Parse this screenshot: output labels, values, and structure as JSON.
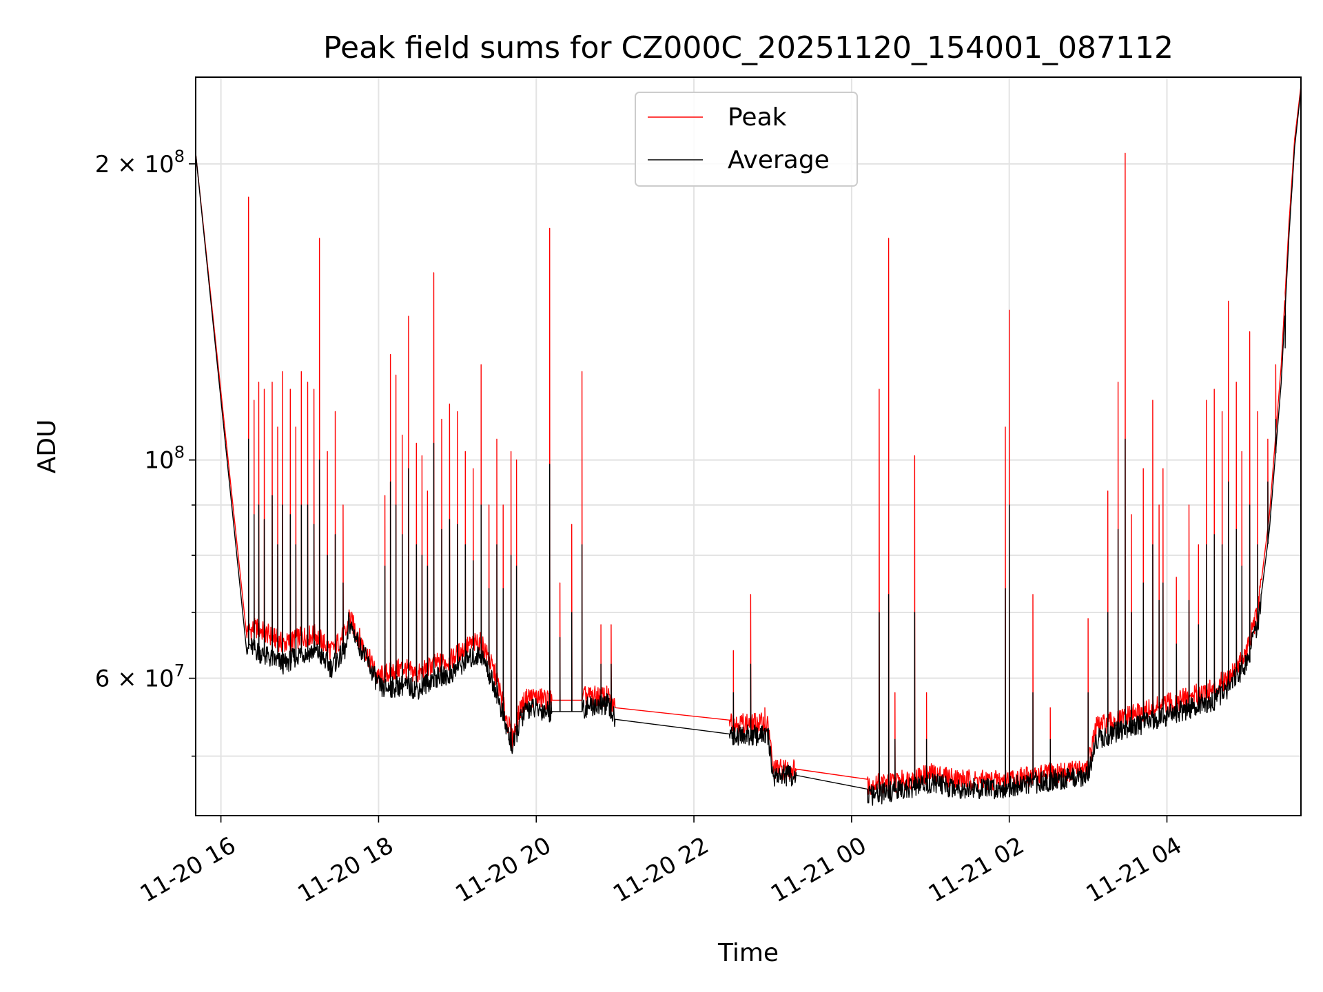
{
  "chart_data": {
    "type": "line",
    "title": "Peak field sums for CZ000C_20251120_154001_087112",
    "xlabel": "Time",
    "ylabel": "ADU",
    "yscale": "log",
    "xlim": [
      15.68,
      29.7
    ],
    "ylim": [
      43500000,
      245000000
    ],
    "grid": true,
    "legend_position": "top-center",
    "x_ticks": [
      {
        "value": 16,
        "label": "11-20 16"
      },
      {
        "value": 18,
        "label": "11-20 18"
      },
      {
        "value": 20,
        "label": "11-20 20"
      },
      {
        "value": 22,
        "label": "11-20 22"
      },
      {
        "value": 24,
        "label": "11-21 00"
      },
      {
        "value": 26,
        "label": "11-21 02"
      },
      {
        "value": 28,
        "label": "11-21 04"
      }
    ],
    "y_ticks_major": [
      {
        "value": 60000000,
        "base": "6 × 10",
        "exp": "7"
      },
      {
        "value": 100000000,
        "base": "10",
        "exp": "8"
      },
      {
        "value": 200000000,
        "base": "2 × 10",
        "exp": "8"
      }
    ],
    "y_ticks_minor": [
      50000000,
      70000000,
      80000000,
      90000000
    ],
    "series": [
      {
        "name": "Peak",
        "color": "#ff0000",
        "baseline": [
          [
            15.68,
            205000000
          ],
          [
            16.33,
            67000000
          ],
          [
            16.45,
            67500000
          ],
          [
            16.6,
            66500000
          ],
          [
            16.8,
            65000000
          ],
          [
            17.0,
            66000000
          ],
          [
            17.2,
            66500000
          ],
          [
            17.4,
            64000000
          ],
          [
            17.6,
            67000000
          ],
          [
            17.62,
            69500000
          ],
          [
            18.0,
            60000000
          ],
          [
            18.05,
            60500000
          ],
          [
            18.3,
            61500000
          ],
          [
            18.5,
            60500000
          ],
          [
            18.7,
            62000000
          ],
          [
            18.9,
            62500000
          ],
          [
            19.1,
            64500000
          ],
          [
            19.3,
            65500000
          ],
          [
            19.5,
            60000000
          ],
          [
            19.6,
            55500000
          ],
          [
            19.7,
            52000000
          ],
          [
            19.8,
            56000000
          ],
          [
            19.9,
            57500000
          ],
          [
            20.2,
            57000000
          ],
          [
            20.6,
            57500000
          ],
          [
            20.9,
            57500000
          ],
          [
            21.0,
            56000000
          ],
          [
            22.45,
            55000000
          ],
          [
            22.5,
            54000000
          ],
          [
            22.9,
            54000000
          ],
          [
            22.95,
            53500000
          ],
          [
            23.0,
            48500000
          ],
          [
            23.3,
            48500000
          ],
          [
            24.2,
            46800000
          ],
          [
            24.5,
            47000000
          ],
          [
            24.8,
            47500000
          ],
          [
            25.0,
            48000000
          ],
          [
            25.3,
            47500000
          ],
          [
            25.6,
            47200000
          ],
          [
            25.9,
            47300000
          ],
          [
            26.2,
            47600000
          ],
          [
            26.5,
            48000000
          ],
          [
            26.9,
            48400000
          ],
          [
            27.0,
            49000000
          ],
          [
            27.1,
            53500000
          ],
          [
            27.4,
            54500000
          ],
          [
            27.7,
            55500000
          ],
          [
            28.0,
            56500000
          ],
          [
            28.3,
            57500000
          ],
          [
            28.6,
            58500000
          ],
          [
            28.8,
            60500000
          ],
          [
            29.0,
            63500000
          ],
          [
            29.15,
            70000000
          ],
          [
            29.3,
            88000000
          ],
          [
            29.45,
            125000000
          ],
          [
            29.55,
            175000000
          ],
          [
            29.62,
            212000000
          ],
          [
            29.7,
            240000000
          ]
        ],
        "spikes": [
          [
            16.35,
            185000000
          ],
          [
            16.42,
            115000000
          ],
          [
            16.48,
            120000000
          ],
          [
            16.55,
            118000000
          ],
          [
            16.65,
            120000000
          ],
          [
            16.72,
            108000000
          ],
          [
            16.78,
            123000000
          ],
          [
            16.88,
            118000000
          ],
          [
            16.95,
            108000000
          ],
          [
            17.02,
            123000000
          ],
          [
            17.1,
            120000000
          ],
          [
            17.18,
            118000000
          ],
          [
            17.25,
            168000000
          ],
          [
            17.35,
            102000000
          ],
          [
            17.45,
            112000000
          ],
          [
            17.55,
            90000000
          ],
          [
            18.08,
            92000000
          ],
          [
            18.15,
            128000000
          ],
          [
            18.22,
            122000000
          ],
          [
            18.3,
            106000000
          ],
          [
            18.38,
            140000000
          ],
          [
            18.48,
            104000000
          ],
          [
            18.55,
            101000000
          ],
          [
            18.62,
            93000000
          ],
          [
            18.7,
            155000000
          ],
          [
            18.8,
            110000000
          ],
          [
            18.9,
            114000000
          ],
          [
            19.0,
            112000000
          ],
          [
            19.1,
            102000000
          ],
          [
            19.2,
            98000000
          ],
          [
            19.3,
            125000000
          ],
          [
            19.4,
            90000000
          ],
          [
            19.5,
            105000000
          ],
          [
            19.58,
            90000000
          ],
          [
            19.68,
            102000000
          ],
          [
            19.75,
            100000000
          ],
          [
            20.17,
            172000000
          ],
          [
            20.3,
            75000000
          ],
          [
            20.45,
            86000000
          ],
          [
            20.58,
            123000000
          ],
          [
            20.82,
            68000000
          ],
          [
            20.95,
            68000000
          ],
          [
            22.5,
            64000000
          ],
          [
            22.72,
            73000000
          ],
          [
            22.9,
            56000000
          ],
          [
            24.35,
            118000000
          ],
          [
            24.47,
            168000000
          ],
          [
            24.55,
            58000000
          ],
          [
            24.8,
            101000000
          ],
          [
            24.95,
            58000000
          ],
          [
            25.95,
            108000000
          ],
          [
            26.0,
            142000000
          ],
          [
            26.3,
            73000000
          ],
          [
            26.52,
            56000000
          ],
          [
            27.0,
            69000000
          ],
          [
            27.25,
            93000000
          ],
          [
            27.38,
            120000000
          ],
          [
            27.47,
            205000000
          ],
          [
            27.55,
            88000000
          ],
          [
            27.7,
            98000000
          ],
          [
            27.82,
            115000000
          ],
          [
            27.9,
            90000000
          ],
          [
            27.95,
            98000000
          ],
          [
            28.12,
            76000000
          ],
          [
            28.28,
            90000000
          ],
          [
            28.4,
            82000000
          ],
          [
            28.5,
            115000000
          ],
          [
            28.6,
            118000000
          ],
          [
            28.7,
            112000000
          ],
          [
            28.78,
            145000000
          ],
          [
            28.88,
            120000000
          ],
          [
            28.95,
            102000000
          ],
          [
            29.05,
            135000000
          ],
          [
            29.15,
            112000000
          ],
          [
            29.28,
            105000000
          ],
          [
            29.38,
            125000000
          ],
          [
            29.5,
            135000000
          ]
        ]
      },
      {
        "name": "Average",
        "color": "#000000",
        "baseline": [
          [
            15.68,
            205000000
          ],
          [
            16.33,
            65000000
          ],
          [
            16.45,
            64000000
          ],
          [
            16.6,
            63000000
          ],
          [
            16.8,
            62000000
          ],
          [
            17.0,
            63500000
          ],
          [
            17.2,
            64000000
          ],
          [
            17.4,
            61500000
          ],
          [
            17.6,
            64500000
          ],
          [
            17.62,
            68500000
          ],
          [
            18.0,
            59000000
          ],
          [
            18.05,
            58500000
          ],
          [
            18.3,
            59000000
          ],
          [
            18.5,
            58500000
          ],
          [
            18.7,
            60000000
          ],
          [
            18.9,
            60500000
          ],
          [
            19.1,
            62500000
          ],
          [
            19.3,
            63500000
          ],
          [
            19.5,
            58000000
          ],
          [
            19.6,
            54000000
          ],
          [
            19.7,
            51000000
          ],
          [
            19.8,
            54500000
          ],
          [
            19.9,
            56000000
          ],
          [
            20.2,
            55500000
          ],
          [
            20.6,
            56000000
          ],
          [
            20.9,
            56500000
          ],
          [
            21.0,
            54500000
          ],
          [
            22.45,
            53500000
          ],
          [
            22.5,
            52500000
          ],
          [
            22.9,
            52500000
          ],
          [
            22.95,
            52000000
          ],
          [
            23.0,
            47800000
          ],
          [
            23.3,
            47800000
          ],
          [
            24.2,
            45500000
          ],
          [
            24.5,
            46000000
          ],
          [
            24.8,
            46500000
          ],
          [
            25.0,
            47000000
          ],
          [
            25.3,
            46500000
          ],
          [
            25.6,
            46300000
          ],
          [
            25.9,
            46400000
          ],
          [
            26.2,
            46800000
          ],
          [
            26.5,
            47200000
          ],
          [
            26.9,
            47600000
          ],
          [
            27.0,
            48000000
          ],
          [
            27.1,
            52000000
          ],
          [
            27.4,
            53000000
          ],
          [
            27.7,
            54000000
          ],
          [
            28.0,
            55000000
          ],
          [
            28.3,
            56000000
          ],
          [
            28.6,
            57000000
          ],
          [
            28.8,
            59000000
          ],
          [
            29.0,
            62000000
          ],
          [
            29.15,
            68000000
          ],
          [
            29.3,
            85000000
          ],
          [
            29.45,
            120000000
          ],
          [
            29.55,
            170000000
          ],
          [
            29.62,
            208000000
          ],
          [
            29.7,
            238000000
          ]
        ],
        "spikes": [
          [
            16.35,
            105000000
          ],
          [
            16.42,
            88000000
          ],
          [
            16.48,
            90000000
          ],
          [
            16.55,
            87000000
          ],
          [
            16.65,
            92000000
          ],
          [
            16.72,
            82000000
          ],
          [
            16.78,
            90000000
          ],
          [
            16.88,
            88000000
          ],
          [
            16.95,
            82000000
          ],
          [
            17.02,
            90000000
          ],
          [
            17.1,
            90000000
          ],
          [
            17.18,
            86000000
          ],
          [
            17.25,
            100000000
          ],
          [
            17.35,
            80000000
          ],
          [
            17.45,
            84000000
          ],
          [
            17.55,
            75000000
          ],
          [
            18.08,
            78000000
          ],
          [
            18.15,
            95000000
          ],
          [
            18.22,
            90000000
          ],
          [
            18.3,
            84000000
          ],
          [
            18.38,
            98000000
          ],
          [
            18.48,
            82000000
          ],
          [
            18.55,
            80000000
          ],
          [
            18.62,
            78000000
          ],
          [
            18.7,
            104000000
          ],
          [
            18.8,
            85000000
          ],
          [
            18.9,
            87000000
          ],
          [
            19.0,
            86000000
          ],
          [
            19.1,
            82000000
          ],
          [
            19.2,
            79000000
          ],
          [
            19.3,
            90000000
          ],
          [
            19.4,
            74000000
          ],
          [
            19.5,
            82000000
          ],
          [
            19.58,
            74000000
          ],
          [
            19.68,
            80000000
          ],
          [
            19.75,
            78000000
          ],
          [
            20.17,
            99000000
          ],
          [
            20.3,
            66000000
          ],
          [
            20.45,
            70000000
          ],
          [
            20.58,
            82000000
          ],
          [
            20.82,
            62000000
          ],
          [
            20.95,
            62000000
          ],
          [
            22.5,
            58000000
          ],
          [
            22.72,
            62000000
          ],
          [
            22.9,
            53000000
          ],
          [
            24.35,
            70000000
          ],
          [
            24.47,
            73000000
          ],
          [
            24.55,
            52000000
          ],
          [
            24.8,
            70000000
          ],
          [
            24.95,
            52000000
          ],
          [
            25.95,
            74000000
          ],
          [
            26.0,
            90000000
          ],
          [
            26.3,
            58000000
          ],
          [
            26.52,
            52000000
          ],
          [
            27.0,
            58000000
          ],
          [
            27.25,
            70000000
          ],
          [
            27.38,
            85000000
          ],
          [
            27.47,
            105000000
          ],
          [
            27.55,
            70000000
          ],
          [
            27.7,
            75000000
          ],
          [
            27.82,
            82000000
          ],
          [
            27.9,
            72000000
          ],
          [
            27.95,
            75000000
          ],
          [
            28.12,
            65000000
          ],
          [
            28.28,
            72000000
          ],
          [
            28.4,
            68000000
          ],
          [
            28.5,
            82000000
          ],
          [
            28.6,
            84000000
          ],
          [
            28.7,
            82000000
          ],
          [
            28.78,
            95000000
          ],
          [
            28.88,
            85000000
          ],
          [
            28.95,
            78000000
          ],
          [
            29.05,
            90000000
          ],
          [
            29.15,
            82000000
          ],
          [
            29.28,
            95000000
          ],
          [
            29.38,
            110000000
          ],
          [
            29.5,
            130000000
          ]
        ]
      }
    ]
  }
}
